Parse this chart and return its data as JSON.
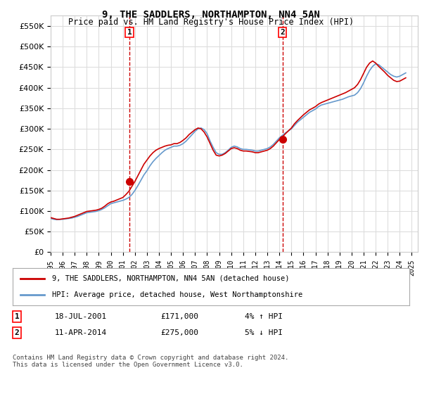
{
  "title": "9, THE SADDLERS, NORTHAMPTON, NN4 5AN",
  "subtitle": "Price paid vs. HM Land Registry's House Price Index (HPI)",
  "xlim_start": 1995.0,
  "xlim_end": 2025.5,
  "ylim": [
    0,
    575000
  ],
  "yticks": [
    0,
    50000,
    100000,
    150000,
    200000,
    250000,
    300000,
    350000,
    400000,
    450000,
    500000,
    550000
  ],
  "xtick_years": [
    1995,
    1996,
    1997,
    1998,
    1999,
    2000,
    2001,
    2002,
    2003,
    2004,
    2005,
    2006,
    2007,
    2008,
    2009,
    2010,
    2011,
    2012,
    2013,
    2014,
    2015,
    2016,
    2017,
    2018,
    2019,
    2020,
    2021,
    2022,
    2023,
    2024,
    2025
  ],
  "hpi_color": "#6699cc",
  "price_color": "#cc0000",
  "dashed_line_color": "#cc0000",
  "grid_color": "#dddddd",
  "background_color": "#ffffff",
  "sale1_x": 2001.54,
  "sale1_y": 171000,
  "sale2_x": 2014.27,
  "sale2_y": 275000,
  "legend_label_price": "9, THE SADDLERS, NORTHAMPTON, NN4 5AN (detached house)",
  "legend_label_hpi": "HPI: Average price, detached house, West Northamptonshire",
  "annotation1_label": "1",
  "annotation2_label": "2",
  "table_row1": [
    "1",
    "18-JUL-2001",
    "£171,000",
    "4% ↑ HPI"
  ],
  "table_row2": [
    "2",
    "11-APR-2014",
    "£275,000",
    "5% ↓ HPI"
  ],
  "footnote": "Contains HM Land Registry data © Crown copyright and database right 2024.\nThis data is licensed under the Open Government Licence v3.0.",
  "hpi_data_x": [
    1995.0,
    1995.25,
    1995.5,
    1995.75,
    1996.0,
    1996.25,
    1996.5,
    1996.75,
    1997.0,
    1997.25,
    1997.5,
    1997.75,
    1998.0,
    1998.25,
    1998.5,
    1998.75,
    1999.0,
    1999.25,
    1999.5,
    1999.75,
    2000.0,
    2000.25,
    2000.5,
    2000.75,
    2001.0,
    2001.25,
    2001.5,
    2001.75,
    2002.0,
    2002.25,
    2002.5,
    2002.75,
    2003.0,
    2003.25,
    2003.5,
    2003.75,
    2004.0,
    2004.25,
    2004.5,
    2004.75,
    2005.0,
    2005.25,
    2005.5,
    2005.75,
    2006.0,
    2006.25,
    2006.5,
    2006.75,
    2007.0,
    2007.25,
    2007.5,
    2007.75,
    2008.0,
    2008.25,
    2008.5,
    2008.75,
    2009.0,
    2009.25,
    2009.5,
    2009.75,
    2010.0,
    2010.25,
    2010.5,
    2010.75,
    2011.0,
    2011.25,
    2011.5,
    2011.75,
    2012.0,
    2012.25,
    2012.5,
    2012.75,
    2013.0,
    2013.25,
    2013.5,
    2013.75,
    2014.0,
    2014.25,
    2014.5,
    2014.75,
    2015.0,
    2015.25,
    2015.5,
    2015.75,
    2016.0,
    2016.25,
    2016.5,
    2016.75,
    2017.0,
    2017.25,
    2017.5,
    2017.75,
    2018.0,
    2018.25,
    2018.5,
    2018.75,
    2019.0,
    2019.25,
    2019.5,
    2019.75,
    2020.0,
    2020.25,
    2020.5,
    2020.75,
    2021.0,
    2021.25,
    2021.5,
    2021.75,
    2022.0,
    2022.25,
    2022.5,
    2022.75,
    2023.0,
    2023.25,
    2023.5,
    2023.75,
    2024.0,
    2024.25,
    2024.5
  ],
  "hpi_data_y": [
    82000,
    80000,
    79000,
    79500,
    80000,
    81000,
    82000,
    83000,
    85000,
    87000,
    90000,
    93000,
    96000,
    97000,
    98000,
    99000,
    101000,
    104000,
    108000,
    113000,
    118000,
    120000,
    122000,
    124000,
    126000,
    129000,
    133000,
    140000,
    150000,
    162000,
    175000,
    188000,
    198000,
    210000,
    220000,
    228000,
    235000,
    242000,
    248000,
    252000,
    255000,
    258000,
    258000,
    260000,
    264000,
    270000,
    278000,
    286000,
    294000,
    300000,
    302000,
    298000,
    288000,
    270000,
    255000,
    242000,
    238000,
    238000,
    242000,
    248000,
    255000,
    258000,
    256000,
    252000,
    250000,
    250000,
    249000,
    248000,
    246000,
    246000,
    248000,
    250000,
    252000,
    256000,
    262000,
    270000,
    278000,
    284000,
    290000,
    295000,
    300000,
    308000,
    316000,
    322000,
    328000,
    334000,
    340000,
    344000,
    348000,
    354000,
    358000,
    360000,
    362000,
    364000,
    366000,
    368000,
    370000,
    372000,
    375000,
    378000,
    380000,
    382000,
    388000,
    398000,
    412000,
    428000,
    442000,
    452000,
    458000,
    456000,
    450000,
    444000,
    438000,
    432000,
    428000,
    426000,
    428000,
    432000,
    436000
  ],
  "price_data_x": [
    1995.0,
    1995.25,
    1995.5,
    1995.75,
    1996.0,
    1996.25,
    1996.5,
    1996.75,
    1997.0,
    1997.25,
    1997.5,
    1997.75,
    1998.0,
    1998.25,
    1998.5,
    1998.75,
    1999.0,
    1999.25,
    1999.5,
    1999.75,
    2000.0,
    2000.25,
    2000.5,
    2000.75,
    2001.0,
    2001.25,
    2001.5,
    2001.75,
    2002.0,
    2002.25,
    2002.5,
    2002.75,
    2003.0,
    2003.25,
    2003.5,
    2003.75,
    2004.0,
    2004.25,
    2004.5,
    2004.75,
    2005.0,
    2005.25,
    2005.5,
    2005.75,
    2006.0,
    2006.25,
    2006.5,
    2006.75,
    2007.0,
    2007.25,
    2007.5,
    2007.75,
    2008.0,
    2008.25,
    2008.5,
    2008.75,
    2009.0,
    2009.25,
    2009.5,
    2009.75,
    2010.0,
    2010.25,
    2010.5,
    2010.75,
    2011.0,
    2011.25,
    2011.5,
    2011.75,
    2012.0,
    2012.25,
    2012.5,
    2012.75,
    2013.0,
    2013.25,
    2013.5,
    2013.75,
    2014.0,
    2014.25,
    2014.5,
    2014.75,
    2015.0,
    2015.25,
    2015.5,
    2015.75,
    2016.0,
    2016.25,
    2016.5,
    2016.75,
    2017.0,
    2017.25,
    2017.5,
    2017.75,
    2018.0,
    2018.25,
    2018.5,
    2018.75,
    2019.0,
    2019.25,
    2019.5,
    2019.75,
    2020.0,
    2020.25,
    2020.5,
    2020.75,
    2021.0,
    2021.25,
    2021.5,
    2021.75,
    2022.0,
    2022.25,
    2022.5,
    2022.75,
    2023.0,
    2023.25,
    2023.5,
    2023.75,
    2024.0,
    2024.25,
    2024.5
  ],
  "price_data_y": [
    84000,
    82000,
    80000,
    80000,
    81000,
    82000,
    83000,
    85000,
    87000,
    90000,
    93000,
    96000,
    99000,
    100000,
    101000,
    102000,
    104000,
    107000,
    112000,
    118000,
    122000,
    124000,
    127000,
    130000,
    133000,
    140000,
    148000,
    160000,
    172000,
    186000,
    200000,
    214000,
    224000,
    234000,
    242000,
    248000,
    252000,
    255000,
    258000,
    260000,
    261000,
    264000,
    264000,
    267000,
    272000,
    278000,
    286000,
    292000,
    298000,
    302000,
    300000,
    292000,
    280000,
    264000,
    248000,
    236000,
    234000,
    236000,
    240000,
    246000,
    252000,
    254000,
    252000,
    248000,
    246000,
    246000,
    245000,
    244000,
    242000,
    242000,
    244000,
    246000,
    248000,
    252000,
    258000,
    266000,
    274000,
    280000,
    288000,
    295000,
    302000,
    312000,
    320000,
    327000,
    334000,
    340000,
    346000,
    350000,
    354000,
    360000,
    364000,
    367000,
    370000,
    373000,
    376000,
    379000,
    382000,
    385000,
    388000,
    392000,
    396000,
    400000,
    408000,
    420000,
    435000,
    450000,
    460000,
    465000,
    460000,
    452000,
    445000,
    438000,
    430000,
    424000,
    418000,
    415000,
    416000,
    420000,
    424000
  ]
}
